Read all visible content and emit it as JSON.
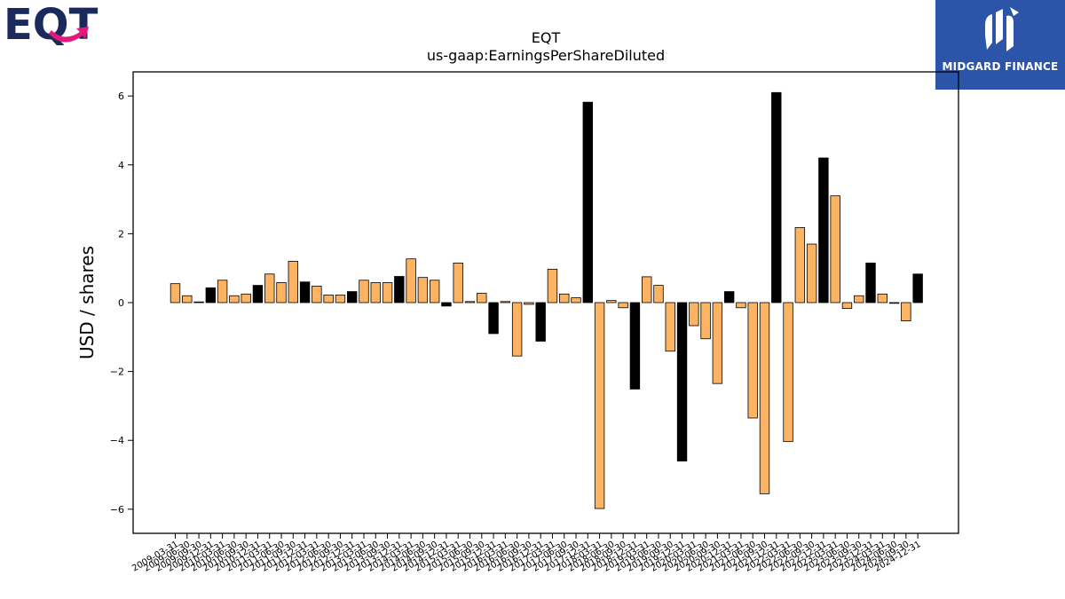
{
  "logos": {
    "left": "EQT",
    "right": "MIDGARD FINANCE"
  },
  "colors": {
    "positive_q": "#fdb462",
    "annual": "#000000"
  },
  "chart_data": {
    "type": "bar",
    "title": "EQT",
    "subtitle": "us-gaap:EarningsPerShareDiluted",
    "ylabel": "USD / shares",
    "xlabel": "",
    "ylim": [
      -6.7,
      6.7
    ],
    "yticks": [
      -6,
      -4,
      -2,
      0,
      2,
      4,
      6
    ],
    "grid": false,
    "categories": [
      "2009-03-31",
      "2009-06-30",
      "2009-09-30",
      "2009-12-31",
      "2010-03-31",
      "2010-06-30",
      "2010-09-30",
      "2010-12-31",
      "2011-03-31",
      "2011-06-30",
      "2011-09-30",
      "2011-12-31",
      "2012-03-31",
      "2012-06-30",
      "2012-09-30",
      "2012-12-31",
      "2013-03-31",
      "2013-06-30",
      "2013-09-30",
      "2013-12-31",
      "2014-03-31",
      "2014-06-30",
      "2014-09-30",
      "2014-12-31",
      "2015-03-31",
      "2015-06-30",
      "2015-09-30",
      "2015-12-31",
      "2016-03-31",
      "2016-06-30",
      "2016-09-30",
      "2016-12-31",
      "2017-03-31",
      "2017-06-30",
      "2017-09-30",
      "2017-12-31",
      "2018-03-31",
      "2018-06-30",
      "2018-09-30",
      "2018-12-31",
      "2019-03-31",
      "2019-06-30",
      "2019-09-30",
      "2019-12-31",
      "2020-03-31",
      "2020-06-30",
      "2020-09-30",
      "2020-12-31",
      "2021-03-31",
      "2021-06-30",
      "2021-09-30",
      "2021-12-31",
      "2022-03-31",
      "2022-06-30",
      "2022-09-30",
      "2022-12-31",
      "2023-03-31",
      "2023-06-30",
      "2023-09-30",
      "2023-12-31",
      "2024-03-31",
      "2024-06-30",
      "2024-09-30",
      "2024-12-31"
    ],
    "values": [
      0.55,
      0.2,
      0.02,
      0.43,
      0.65,
      0.2,
      0.25,
      0.5,
      0.83,
      0.58,
      1.2,
      0.6,
      0.48,
      0.22,
      0.22,
      0.32,
      0.65,
      0.58,
      0.58,
      0.76,
      1.27,
      0.73,
      0.65,
      -0.1,
      1.15,
      0.03,
      0.27,
      -0.9,
      0.03,
      -1.55,
      -0.05,
      -1.12,
      0.97,
      0.25,
      0.14,
      5.82,
      -5.98,
      0.06,
      -0.15,
      -2.51,
      0.75,
      0.5,
      -1.41,
      -4.6,
      -0.67,
      -1.05,
      -2.35,
      0.32,
      -0.15,
      -3.35,
      -5.55,
      6.1,
      -4.03,
      2.18,
      1.7,
      4.2,
      3.1,
      -0.17,
      0.2,
      1.15,
      0.25,
      0.0,
      -0.53,
      0.83
    ],
    "annual": [
      false,
      false,
      false,
      true,
      false,
      false,
      false,
      true,
      false,
      false,
      false,
      true,
      false,
      false,
      false,
      true,
      false,
      false,
      false,
      true,
      false,
      false,
      false,
      true,
      false,
      false,
      false,
      true,
      false,
      false,
      false,
      true,
      false,
      false,
      false,
      true,
      false,
      false,
      false,
      true,
      false,
      false,
      false,
      true,
      false,
      false,
      false,
      true,
      false,
      false,
      false,
      true,
      false,
      false,
      false,
      true,
      false,
      false,
      false,
      true,
      false,
      false,
      false,
      true
    ]
  }
}
